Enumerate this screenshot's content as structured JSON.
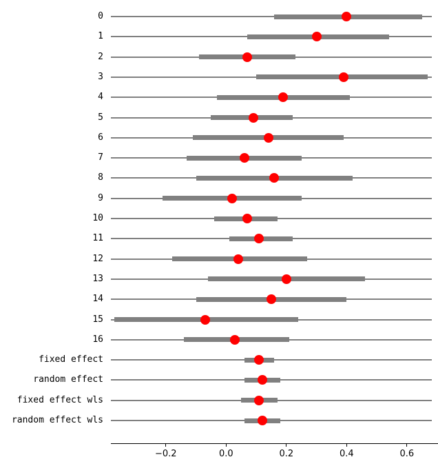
{
  "chart_data": {
    "type": "forest",
    "title": "",
    "xlabel": "",
    "ylabel": "",
    "legend": null,
    "grid": false,
    "xlim": [
      -0.39,
      0.7
    ],
    "line_span": [
      -0.383,
      0.683
    ],
    "xticks": [
      {
        "value": -0.2,
        "label": "−0.2"
      },
      {
        "value": 0.0,
        "label": "0.0"
      },
      {
        "value": 0.2,
        "label": "0.2"
      },
      {
        "value": 0.4,
        "label": "0.4"
      },
      {
        "value": 0.6,
        "label": "0.6"
      }
    ],
    "rows": [
      {
        "label": "0",
        "estimate": 0.4,
        "band_low": 0.16,
        "band_high": 0.65
      },
      {
        "label": "1",
        "estimate": 0.3,
        "band_low": 0.07,
        "band_high": 0.54
      },
      {
        "label": "2",
        "estimate": 0.07,
        "band_low": -0.09,
        "band_high": 0.23
      },
      {
        "label": "3",
        "estimate": 0.39,
        "band_low": 0.1,
        "band_high": 0.67
      },
      {
        "label": "4",
        "estimate": 0.19,
        "band_low": -0.03,
        "band_high": 0.41
      },
      {
        "label": "5",
        "estimate": 0.09,
        "band_low": -0.05,
        "band_high": 0.22
      },
      {
        "label": "6",
        "estimate": 0.14,
        "band_low": -0.11,
        "band_high": 0.39
      },
      {
        "label": "7",
        "estimate": 0.06,
        "band_low": -0.13,
        "band_high": 0.25
      },
      {
        "label": "8",
        "estimate": 0.16,
        "band_low": -0.1,
        "band_high": 0.42
      },
      {
        "label": "9",
        "estimate": 0.02,
        "band_low": -0.21,
        "band_high": 0.25
      },
      {
        "label": "10",
        "estimate": 0.07,
        "band_low": -0.04,
        "band_high": 0.17
      },
      {
        "label": "11",
        "estimate": 0.11,
        "band_low": 0.01,
        "band_high": 0.22
      },
      {
        "label": "12",
        "estimate": 0.04,
        "band_low": -0.18,
        "band_high": 0.27
      },
      {
        "label": "13",
        "estimate": 0.2,
        "band_low": -0.06,
        "band_high": 0.46
      },
      {
        "label": "14",
        "estimate": 0.15,
        "band_low": -0.1,
        "band_high": 0.4
      },
      {
        "label": "15",
        "estimate": -0.07,
        "band_low": -0.37,
        "band_high": 0.24
      },
      {
        "label": "16",
        "estimate": 0.03,
        "band_low": -0.14,
        "band_high": 0.21
      },
      {
        "label": "fixed effect",
        "estimate": 0.11,
        "band_low": 0.06,
        "band_high": 0.16
      },
      {
        "label": "random effect",
        "estimate": 0.12,
        "band_low": 0.06,
        "band_high": 0.18
      },
      {
        "label": "fixed effect wls",
        "estimate": 0.11,
        "band_low": 0.05,
        "band_high": 0.17
      },
      {
        "label": "random effect wls",
        "estimate": 0.12,
        "band_low": 0.06,
        "band_high": 0.18
      }
    ],
    "colors": {
      "estimate_marker": "#ff0000",
      "interval_bar": "#808080",
      "row_line": "#808080",
      "axis": "#000000",
      "background": "#ffffff"
    }
  }
}
